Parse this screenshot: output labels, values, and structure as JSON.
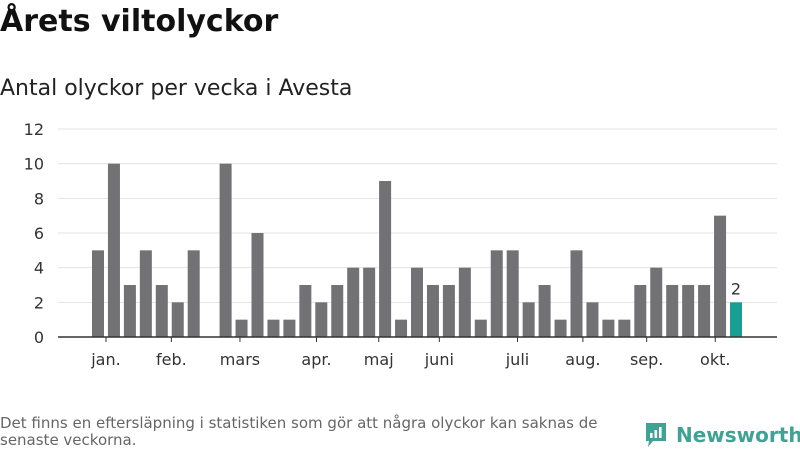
{
  "chart_data": {
    "type": "bar",
    "title": "Årets viltolyckor",
    "subtitle": "Antal olyckor per vecka i Avesta",
    "ylim": [
      0,
      12
    ],
    "yticks": [
      0,
      2,
      4,
      6,
      8,
      10,
      12
    ],
    "grid": true,
    "colors": {
      "bar": "#727174",
      "highlight": "#1a9e93",
      "grid": "#e3e3e3",
      "axis": "#333333"
    },
    "weeks": [
      1,
      2,
      3,
      4,
      5,
      6,
      7,
      8,
      9,
      10,
      11,
      12,
      13,
      14,
      15,
      16,
      17,
      18,
      19,
      20,
      21,
      22,
      23,
      24,
      25,
      26,
      27,
      28,
      29,
      30,
      31,
      32,
      33,
      34,
      35,
      36,
      37,
      38,
      39,
      40,
      41
    ],
    "values": [
      5,
      10,
      3,
      5,
      3,
      2,
      5,
      0,
      10,
      1,
      6,
      1,
      1,
      3,
      2,
      3,
      4,
      4,
      9,
      1,
      4,
      3,
      3,
      4,
      1,
      5,
      5,
      2,
      3,
      1,
      5,
      2,
      1,
      1,
      3,
      4,
      3,
      3,
      3,
      7,
      2
    ],
    "highlight_index": 40,
    "highlight_label": "2",
    "month_labels": [
      {
        "label": "jan.",
        "week": 1.5
      },
      {
        "label": "feb.",
        "week": 5.6
      },
      {
        "label": "mars",
        "week": 9.9
      },
      {
        "label": "apr.",
        "week": 14.7
      },
      {
        "label": "maj",
        "week": 18.6
      },
      {
        "label": "juni",
        "week": 22.4
      },
      {
        "label": "juli",
        "week": 27.3
      },
      {
        "label": "aug.",
        "week": 31.4
      },
      {
        "label": "sep.",
        "week": 35.4
      },
      {
        "label": "okt.",
        "week": 39.7
      }
    ]
  },
  "footnote": "Det finns en eftersläpning i statistiken som gör att några olyckor kan saknas de senaste veckorna.",
  "logo": {
    "text": "Newsworthy",
    "color": "#3fa294"
  }
}
